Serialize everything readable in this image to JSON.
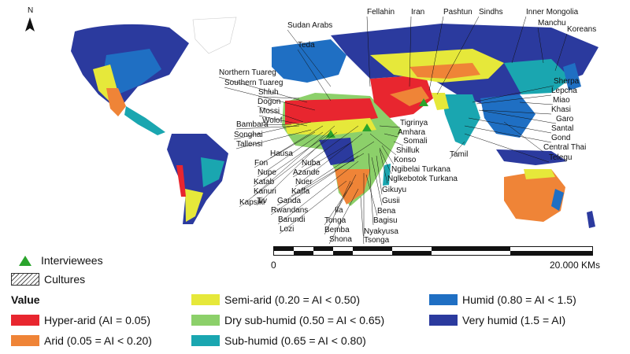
{
  "north_label": "N",
  "colors": {
    "hyper_arid": "#e8262f",
    "arid": "#ef8437",
    "semi_arid": "#e6e83a",
    "dry_sub_humid": "#8cd06a",
    "sub_humid": "#1aa6b0",
    "humid": "#1f6fc3",
    "very_humid": "#2b3a9e",
    "interviewee_marker": "#2aa42c"
  },
  "labels": [
    "Sudan Arabs",
    "Teda",
    "Fellahin",
    "Iran",
    "Pashtun",
    "Sindhs",
    "Inner Mongolia",
    "Manchu",
    "Koreans",
    "Northern Tuareg",
    "Southern Tuareg",
    "Shluh",
    "Dogon",
    "Mossi",
    "Wolof",
    "Bambara",
    "Songhai",
    "Tallensi",
    "Hausa",
    "Fon",
    "Nupe",
    "Katab",
    "Kanuri",
    "Tiv",
    "Kapsiki",
    "Nuba",
    "Azande",
    "Nuer",
    "Kaffa",
    "Ganda",
    "Rwandans",
    "Barundi",
    "Lozi",
    "Ila",
    "Tonga",
    "Bemba",
    "Shona",
    "Bagisu",
    "Nyakyusa",
    "Tsonga",
    "Bena",
    "Gusii",
    "Gikuyu",
    "Nglkebotok Turkana",
    "Ngibelai Turkana",
    "Konso",
    "Shilluk",
    "Somali",
    "Amhara",
    "Tigrinya",
    "Tamil",
    "Sherpa",
    "Lepcha",
    "Miao",
    "Khasi",
    "Garo",
    "Santal",
    "Gond",
    "Central Thai",
    "Telegu"
  ],
  "scale": {
    "zero": "0",
    "end": "20.000 KMs"
  },
  "legend": {
    "interviewees": "Interviewees",
    "cultures": "Cultures",
    "value_title": "Value",
    "items": [
      {
        "label": "Hyper-arid (AI = 0.05)"
      },
      {
        "label": "Arid (0.05 = AI < 0.20)"
      },
      {
        "label": "Semi-arid (0.20 = AI < 0.50)"
      },
      {
        "label": "Dry sub-humid (0.50 = AI < 0.65)"
      },
      {
        "label": "Sub-humid (0.65 = AI < 0.80)"
      },
      {
        "label": "Humid (0.80 = AI < 1.5)"
      },
      {
        "label": "Very humid (1.5 = AI)"
      }
    ]
  }
}
